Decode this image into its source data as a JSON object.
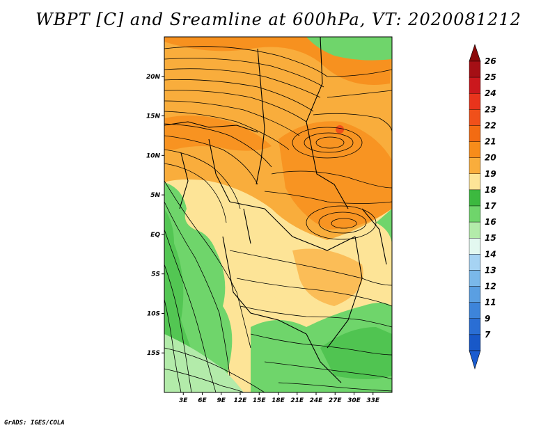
{
  "title": "WBPT [C] and Sreamline at 600hPa, VT: 2020081212",
  "footer": "GrADS: IGES/COLA",
  "map": {
    "lon_range": [
      0,
      36
    ],
    "lat_range": [
      -20,
      25
    ],
    "lon_ticks": [
      "3E",
      "6E",
      "9E",
      "12E",
      "15E",
      "18E",
      "21E",
      "24E",
      "27E",
      "30E",
      "33E"
    ],
    "lat_ticks": [
      "20N",
      "15N",
      "10N",
      "5N",
      "EQ",
      "5S",
      "10S",
      "15S"
    ]
  },
  "colorbar": {
    "levels": [
      {
        "label": "26",
        "color": "#a50f15"
      },
      {
        "label": "25",
        "color": "#cb181d"
      },
      {
        "label": "24",
        "color": "#e8341c"
      },
      {
        "label": "23",
        "color": "#f0501a"
      },
      {
        "label": "22",
        "color": "#f36b12"
      },
      {
        "label": "21",
        "color": "#f78c1a"
      },
      {
        "label": "20",
        "color": "#f9ad3c"
      },
      {
        "label": "19",
        "color": "#fde497"
      },
      {
        "label": "18",
        "color": "#3cb93f"
      },
      {
        "label": "17",
        "color": "#6fd56b"
      },
      {
        "label": "16",
        "color": "#b3ebaa"
      },
      {
        "label": "15",
        "color": "#e3f8f0"
      },
      {
        "label": "14",
        "color": "#a6d3f3"
      },
      {
        "label": "13",
        "color": "#7ab8ea"
      },
      {
        "label": "12",
        "color": "#5a9fe2"
      },
      {
        "label": "11",
        "color": "#3d84da"
      },
      {
        "label": "9",
        "color": "#2a6ed4"
      },
      {
        "label": "7",
        "color": "#1858c8"
      }
    ],
    "top_arrow_color": "#8b0a0a",
    "bottom_arrow_color": "#1a5cd0"
  }
}
